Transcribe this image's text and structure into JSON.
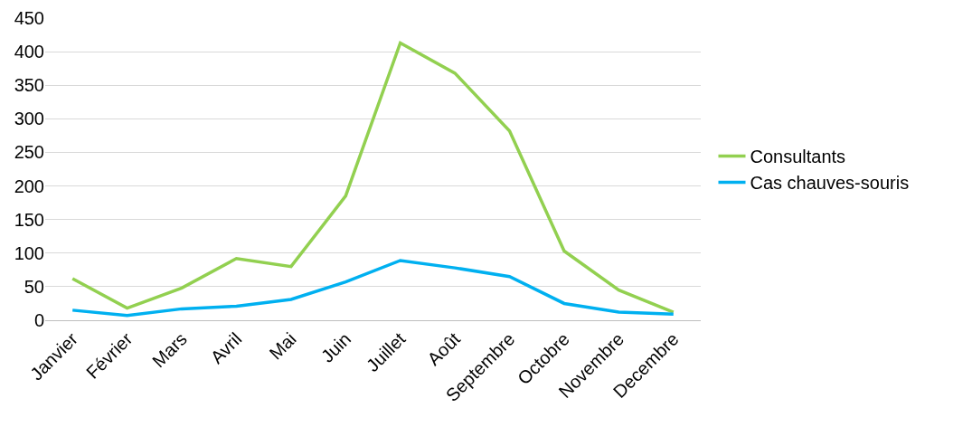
{
  "chart_data": {
    "type": "line",
    "categories": [
      "Janvier",
      "Février",
      "Mars",
      "Avril",
      "Mai",
      "Juin",
      "Juillet",
      "Août",
      "Septembre",
      "Octobre",
      "Novembre",
      "Decembre"
    ],
    "series": [
      {
        "name": "Consultants",
        "color": "#92d050",
        "values": [
          62,
          18,
          48,
          92,
          80,
          185,
          413,
          368,
          282,
          103,
          45,
          12
        ]
      },
      {
        "name": "Cas chauves-souris",
        "color": "#00b0f0",
        "values": [
          15,
          7,
          17,
          21,
          31,
          57,
          89,
          78,
          65,
          25,
          12,
          9
        ]
      }
    ],
    "ylim": [
      0,
      450
    ],
    "yticks": [
      0,
      50,
      100,
      150,
      200,
      250,
      300,
      350,
      400,
      450
    ],
    "grid": "y",
    "legend": "right",
    "marker": "none",
    "line_style": "solid"
  }
}
